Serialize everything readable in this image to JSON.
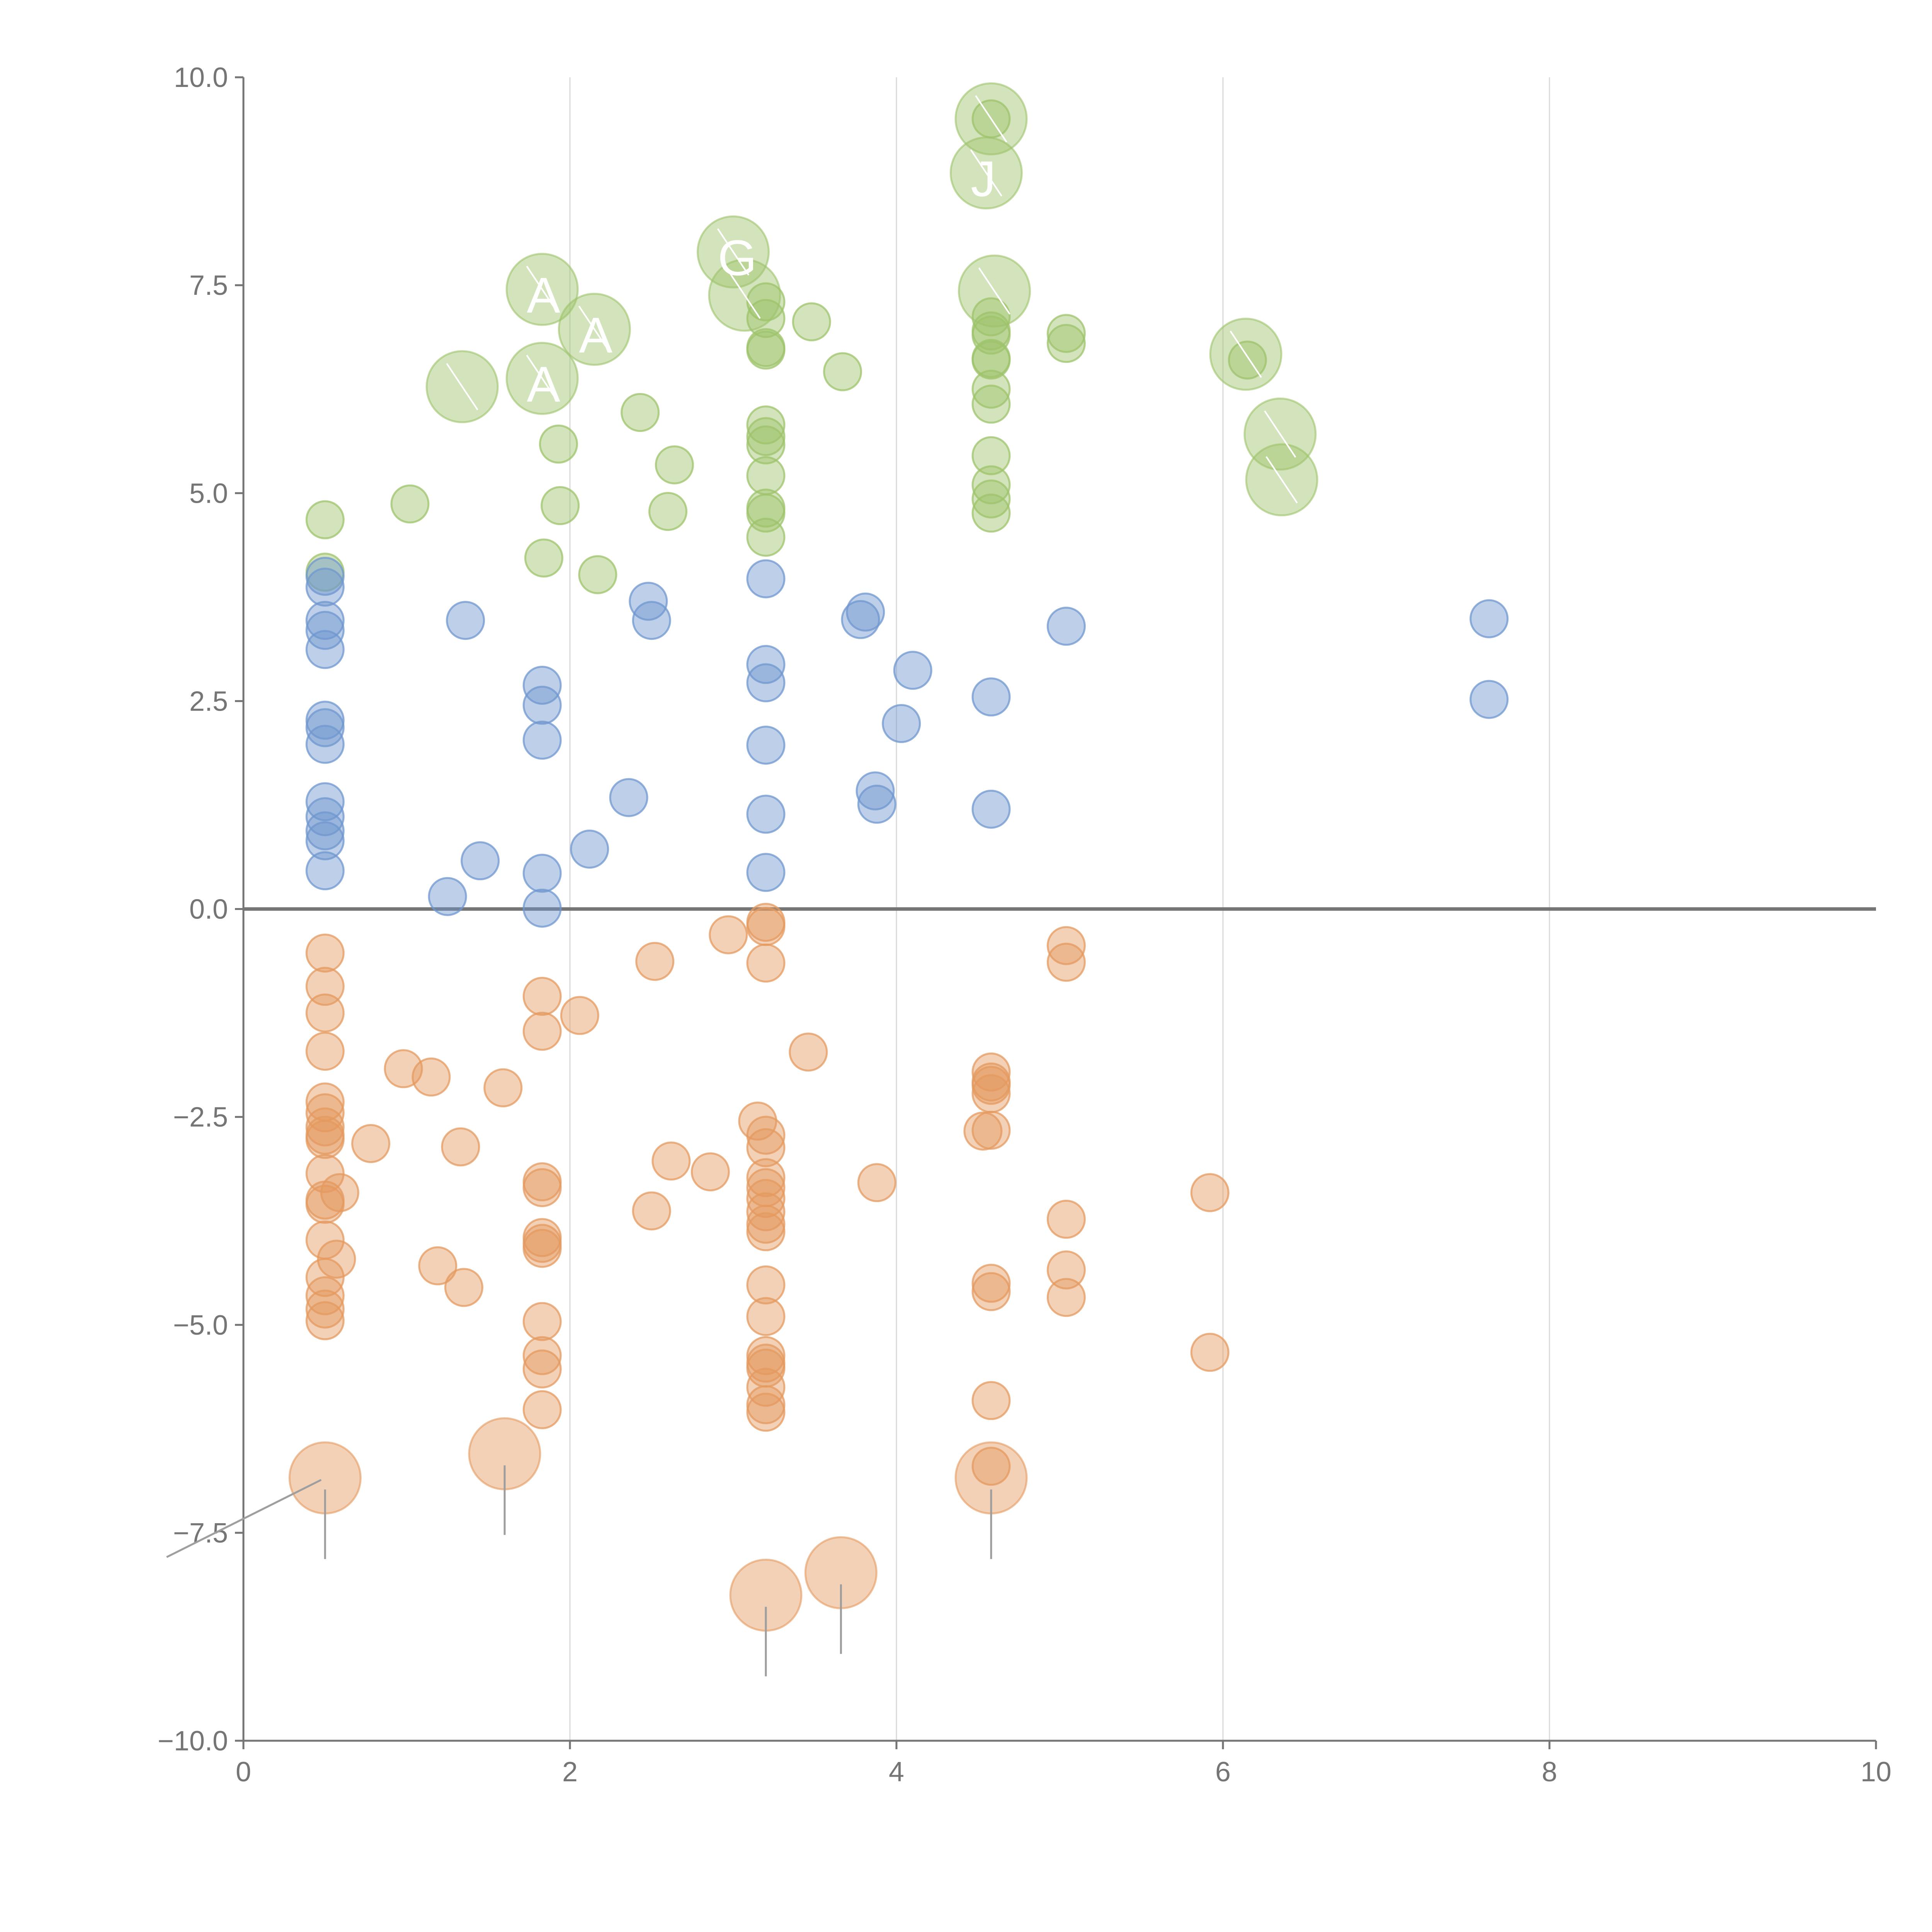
{
  "chart_data": {
    "type": "scatter",
    "title": "",
    "xlabel": "",
    "ylabel": "",
    "xlim": [
      0,
      10
    ],
    "ylim": [
      -10,
      10
    ],
    "x_ticks": [
      "0",
      "2",
      "4",
      "6",
      "8",
      "10"
    ],
    "y_ticks": [
      "10.0",
      "7.5",
      "5.0",
      "2.5",
      "0.0",
      "−2.5",
      "−5.0",
      "−7.5",
      "−10.0"
    ],
    "grid": "vertical",
    "zero_line": 0,
    "colors": {
      "green": "#9dc36b",
      "blue": "#6f97cf",
      "orange": "#e49a5f",
      "axis": "#757575",
      "grid": "#d9d9d9"
    },
    "series": [
      {
        "name": "green",
        "color": "#9dc36b",
        "points": [
          [
            0.5,
            4.68
          ],
          [
            0.5,
            4.05
          ],
          [
            1.02,
            4.87
          ],
          [
            1.84,
            4.22
          ],
          [
            1.93,
            5.59
          ],
          [
            1.94,
            4.85
          ],
          [
            2.17,
            4.02
          ],
          [
            2.43,
            5.97
          ],
          [
            2.6,
            4.78
          ],
          [
            2.64,
            5.34
          ],
          [
            3.2,
            7.3
          ],
          [
            3.2,
            7.1
          ],
          [
            3.2,
            6.75
          ],
          [
            3.2,
            6.72
          ],
          [
            3.2,
            5.82
          ],
          [
            3.2,
            5.68
          ],
          [
            3.2,
            5.58
          ],
          [
            3.2,
            5.21
          ],
          [
            3.2,
            4.82
          ],
          [
            3.2,
            4.76
          ],
          [
            3.2,
            4.47
          ],
          [
            3.48,
            7.06
          ],
          [
            3.67,
            6.46
          ],
          [
            4.58,
            9.5
          ],
          [
            4.58,
            7.12
          ],
          [
            4.58,
            6.95
          ],
          [
            4.58,
            6.9
          ],
          [
            4.58,
            6.62
          ],
          [
            4.58,
            6.6
          ],
          [
            4.58,
            6.25
          ],
          [
            4.58,
            6.07
          ],
          [
            4.58,
            5.45
          ],
          [
            4.58,
            5.1
          ],
          [
            4.58,
            4.93
          ],
          [
            4.58,
            4.76
          ],
          [
            5.04,
            6.92
          ],
          [
            5.04,
            6.8
          ],
          [
            6.15,
            6.6
          ]
        ],
        "big": [
          {
            "x": 1.83,
            "y": 7.45,
            "label": "A"
          },
          {
            "x": 2.15,
            "y": 6.97,
            "label": "A"
          },
          {
            "x": 1.34,
            "y": 6.28,
            "label": ""
          },
          {
            "x": 1.83,
            "y": 6.38,
            "label": "A"
          },
          {
            "x": 3.0,
            "y": 7.9,
            "label": "G"
          },
          {
            "x": 3.07,
            "y": 7.38,
            "label": ""
          },
          {
            "x": 4.58,
            "y": 9.5,
            "label": ""
          },
          {
            "x": 4.55,
            "y": 8.85,
            "label": "J"
          },
          {
            "x": 4.6,
            "y": 7.43,
            "label": ""
          },
          {
            "x": 6.14,
            "y": 6.67,
            "label": ""
          },
          {
            "x": 6.35,
            "y": 5.71,
            "label": ""
          },
          {
            "x": 6.36,
            "y": 5.16,
            "label": ""
          }
        ]
      },
      {
        "name": "blue",
        "color": "#6f97cf",
        "points": [
          [
            0.5,
            4.0
          ],
          [
            0.5,
            3.87
          ],
          [
            0.5,
            3.47
          ],
          [
            0.5,
            3.35
          ],
          [
            0.5,
            3.12
          ],
          [
            0.5,
            2.27
          ],
          [
            0.5,
            2.18
          ],
          [
            0.5,
            1.98
          ],
          [
            0.5,
            1.29
          ],
          [
            0.5,
            1.11
          ],
          [
            0.5,
            0.94
          ],
          [
            0.5,
            0.82
          ],
          [
            0.5,
            0.46
          ],
          [
            1.25,
            0.15
          ],
          [
            1.36,
            3.47
          ],
          [
            1.45,
            0.58
          ],
          [
            1.83,
            2.69
          ],
          [
            1.83,
            2.45
          ],
          [
            1.83,
            2.03
          ],
          [
            1.83,
            0.43
          ],
          [
            1.83,
            0.01
          ],
          [
            2.12,
            0.72
          ],
          [
            2.36,
            1.34
          ],
          [
            2.48,
            3.7
          ],
          [
            2.5,
            3.47
          ],
          [
            3.2,
            3.97
          ],
          [
            3.2,
            2.94
          ],
          [
            3.2,
            2.72
          ],
          [
            3.2,
            1.97
          ],
          [
            3.2,
            1.14
          ],
          [
            3.2,
            0.44
          ],
          [
            3.78,
            3.48
          ],
          [
            3.81,
            3.57
          ],
          [
            3.87,
            1.42
          ],
          [
            3.88,
            1.26
          ],
          [
            4.03,
            2.23
          ],
          [
            4.1,
            2.87
          ],
          [
            4.58,
            2.55
          ],
          [
            4.58,
            1.2
          ],
          [
            5.04,
            3.4
          ],
          [
            7.63,
            3.49
          ],
          [
            7.63,
            2.52
          ]
        ],
        "big": []
      },
      {
        "name": "orange",
        "color": "#e49a5f",
        "points": [
          [
            0.5,
            -0.53
          ],
          [
            0.5,
            -0.93
          ],
          [
            0.5,
            -1.25
          ],
          [
            0.5,
            -1.71
          ],
          [
            0.5,
            -2.32
          ],
          [
            0.5,
            -2.45
          ],
          [
            0.5,
            -2.62
          ],
          [
            0.5,
            -2.72
          ],
          [
            0.5,
            -2.77
          ],
          [
            0.5,
            -3.18
          ],
          [
            0.5,
            -3.5
          ],
          [
            0.5,
            -3.55
          ],
          [
            0.5,
            -3.98
          ],
          [
            0.5,
            -4.43
          ],
          [
            0.5,
            -4.65
          ],
          [
            0.5,
            -4.81
          ],
          [
            0.5,
            -4.95
          ],
          [
            0.57,
            -4.21
          ],
          [
            0.59,
            -3.41
          ],
          [
            0.78,
            -2.82
          ],
          [
            0.98,
            -1.92
          ],
          [
            1.15,
            -2.02
          ],
          [
            1.19,
            -4.29
          ],
          [
            1.35,
            -4.55
          ],
          [
            1.33,
            -2.86
          ],
          [
            1.59,
            -2.15
          ],
          [
            1.83,
            -1.05
          ],
          [
            1.83,
            -1.47
          ],
          [
            1.83,
            -3.28
          ],
          [
            1.83,
            -3.35
          ],
          [
            1.83,
            -3.95
          ],
          [
            1.83,
            -4.02
          ],
          [
            1.83,
            -4.08
          ],
          [
            1.83,
            -4.96
          ],
          [
            1.83,
            -5.37
          ],
          [
            1.83,
            -5.53
          ],
          [
            1.83,
            -6.02
          ],
          [
            2.06,
            -1.28
          ],
          [
            2.5,
            -3.63
          ],
          [
            2.52,
            -0.63
          ],
          [
            2.62,
            -3.03
          ],
          [
            2.86,
            -3.16
          ],
          [
            2.97,
            -0.31
          ],
          [
            3.15,
            -2.55
          ],
          [
            3.2,
            -0.16
          ],
          [
            3.2,
            -0.21
          ],
          [
            3.2,
            -0.65
          ],
          [
            3.2,
            -2.72
          ],
          [
            3.2,
            -2.87
          ],
          [
            3.2,
            -3.23
          ],
          [
            3.2,
            -3.35
          ],
          [
            3.2,
            -3.48
          ],
          [
            3.2,
            -3.64
          ],
          [
            3.2,
            -3.79
          ],
          [
            3.2,
            -3.88
          ],
          [
            3.2,
            -4.52
          ],
          [
            3.2,
            -4.9
          ],
          [
            3.2,
            -5.37
          ],
          [
            3.2,
            -5.46
          ],
          [
            3.2,
            -5.52
          ],
          [
            3.2,
            -5.75
          ],
          [
            3.2,
            -5.96
          ],
          [
            3.2,
            -6.05
          ],
          [
            3.46,
            -1.72
          ],
          [
            3.88,
            -3.29
          ],
          [
            4.53,
            -2.67
          ],
          [
            4.58,
            -1.96
          ],
          [
            4.58,
            -2.08
          ],
          [
            4.58,
            -2.12
          ],
          [
            4.58,
            -2.22
          ],
          [
            4.58,
            -2.66
          ],
          [
            4.58,
            -4.5
          ],
          [
            4.58,
            -4.6
          ],
          [
            4.58,
            -5.91
          ],
          [
            4.58,
            -6.7
          ],
          [
            5.04,
            -0.44
          ],
          [
            5.04,
            -0.64
          ],
          [
            5.04,
            -3.73
          ],
          [
            5.04,
            -4.34
          ],
          [
            5.04,
            -4.67
          ],
          [
            5.92,
            -3.41
          ],
          [
            5.92,
            -5.33
          ]
        ],
        "big": [
          {
            "x": 0.5,
            "y": -6.84,
            "label": ""
          },
          {
            "x": 1.6,
            "y": -6.55,
            "label": ""
          },
          {
            "x": 4.58,
            "y": -6.84,
            "label": ""
          },
          {
            "x": 3.2,
            "y": -8.25,
            "label": ""
          },
          {
            "x": 3.66,
            "y": -7.98,
            "label": ""
          }
        ]
      }
    ]
  }
}
